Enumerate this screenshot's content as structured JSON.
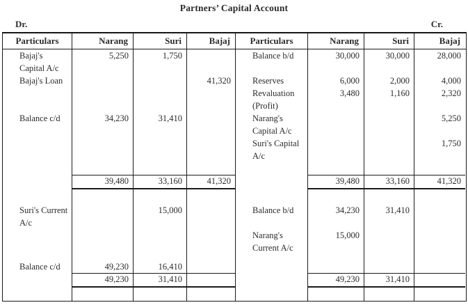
{
  "title": "Partners’ Capital Account",
  "dr_label": "Dr.",
  "cr_label": "Cr.",
  "colors": {
    "text": "#2b2b2b",
    "border": "#1a1a1a",
    "background": "#ffffff"
  },
  "table": {
    "header": [
      "Particulars",
      "Narang",
      "Suri",
      "Bajaj",
      "Particulars",
      "Narang",
      "Suri",
      "Bajaj"
    ],
    "rows": [
      {
        "type": "body",
        "cells": [
          "Bajaj's",
          "5,250",
          "1,750",
          "",
          "Balance b/d",
          "30,000",
          "30,000",
          "28,000"
        ]
      },
      {
        "type": "body",
        "cells": [
          "Capital A/c",
          "",
          "",
          "",
          "",
          "",
          "",
          ""
        ]
      },
      {
        "type": "body",
        "cells": [
          "Bajaj's Loan",
          "",
          "",
          "41,320",
          "Reserves",
          "6,000",
          "2,000",
          "4,000"
        ]
      },
      {
        "type": "body",
        "cells": [
          "",
          "",
          "",
          "",
          "Revaluation",
          "3,480",
          "1,160",
          "2,320"
        ]
      },
      {
        "type": "body",
        "cells": [
          "",
          "",
          "",
          "",
          "(Profit)",
          "",
          "",
          ""
        ]
      },
      {
        "type": "body",
        "cells": [
          "Balance c/d",
          "34,230",
          "31,410",
          "",
          "Narang's",
          "",
          "",
          "5,250"
        ]
      },
      {
        "type": "body",
        "cells": [
          "",
          "",
          "",
          "",
          "Capital A/c",
          "",
          "",
          ""
        ]
      },
      {
        "type": "body",
        "cells": [
          "",
          "",
          "",
          "",
          "Suri's Capital",
          "",
          "",
          "1,750"
        ]
      },
      {
        "type": "body",
        "cells": [
          "",
          "",
          "",
          "",
          "A/c",
          "",
          "",
          ""
        ]
      },
      {
        "type": "spacer",
        "h": 18,
        "cells": [
          "",
          "",
          "",
          "",
          "",
          "",
          "",
          ""
        ]
      },
      {
        "type": "totals",
        "cells": [
          "",
          "39,480",
          "33,160",
          "41,320",
          "",
          "39,480",
          "33,160",
          "41,320"
        ]
      },
      {
        "type": "spacer",
        "h": 21,
        "cells": [
          "",
          "",
          "",
          "",
          "",
          "",
          "",
          ""
        ]
      },
      {
        "type": "body",
        "cells": [
          "Suri's Current",
          "",
          "15,000",
          "",
          "Balance b/d",
          "34,230",
          "31,410",
          ""
        ]
      },
      {
        "type": "body",
        "cells": [
          "A/c",
          "",
          "",
          "",
          "",
          "",
          "",
          ""
        ]
      },
      {
        "type": "body",
        "cells": [
          "",
          "",
          "",
          "",
          "Narang's",
          "15,000",
          "",
          ""
        ]
      },
      {
        "type": "body",
        "cells": [
          "",
          "",
          "",
          "",
          "Current A/c",
          "",
          "",
          ""
        ]
      },
      {
        "type": "spacer",
        "h": 9,
        "cells": [
          "",
          "",
          "",
          "",
          "",
          "",
          "",
          ""
        ]
      },
      {
        "type": "body",
        "cells": [
          "Balance c/d",
          "49,230",
          "16,410",
          "",
          "",
          "",
          "",
          ""
        ]
      },
      {
        "type": "totals",
        "cells": [
          "",
          "49,230",
          "31,410",
          "",
          "",
          "49,230",
          "31,410",
          ""
        ]
      },
      {
        "type": "spacer",
        "h": 19,
        "cells": [
          "",
          "",
          "",
          "",
          "",
          "",
          "",
          ""
        ]
      }
    ]
  }
}
